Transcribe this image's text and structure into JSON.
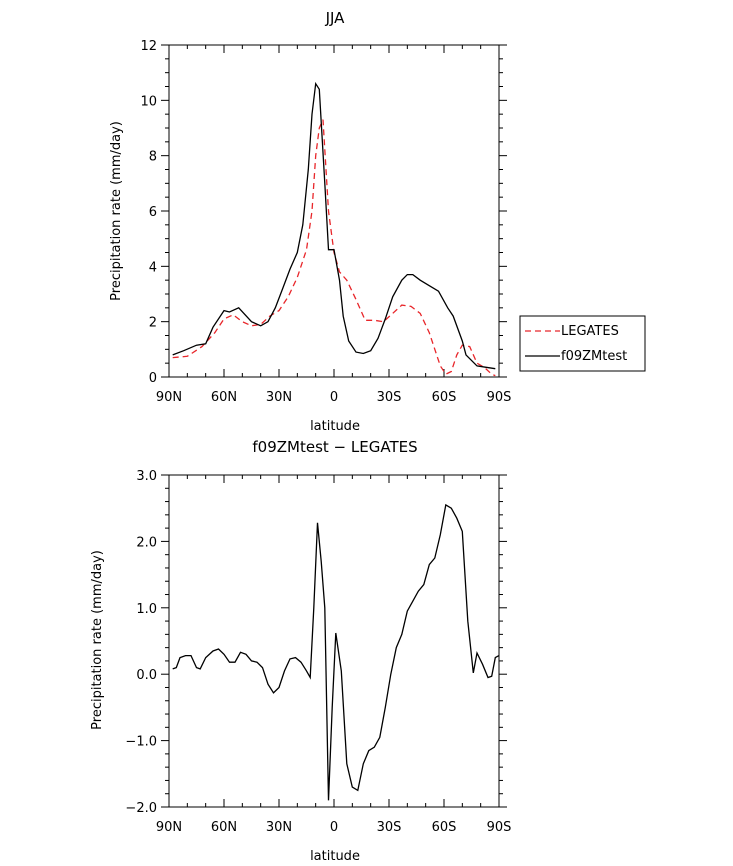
{
  "chart_data": [
    {
      "type": "line",
      "title": "JJA",
      "xlabel": "latitude",
      "ylabel": "Precipitation rate (mm/day)",
      "xlim": [
        90,
        -90
      ],
      "ylim": [
        0,
        12
      ],
      "xticks": [
        90,
        60,
        30,
        0,
        -30,
        -60,
        -90
      ],
      "xtick_labels": [
        "90N",
        "60N",
        "30N",
        "0",
        "30S",
        "60S",
        "90S"
      ],
      "yticks": [
        0,
        2,
        4,
        6,
        8,
        10,
        12
      ],
      "ytick_labels": [
        "0",
        "2",
        "4",
        "6",
        "8",
        "10",
        "12"
      ],
      "grid": false,
      "legend_position": "right",
      "series": [
        {
          "name": "LEGATES",
          "color": "#e8262a",
          "style": "dashed",
          "points": [
            [
              88,
              0.7
            ],
            [
              80,
              0.75
            ],
            [
              72,
              1.1
            ],
            [
              65,
              1.6
            ],
            [
              60,
              2.1
            ],
            [
              55,
              2.25
            ],
            [
              50,
              2.0
            ],
            [
              45,
              1.85
            ],
            [
              40,
              1.9
            ],
            [
              35,
              2.2
            ],
            [
              30,
              2.4
            ],
            [
              25,
              2.9
            ],
            [
              20,
              3.6
            ],
            [
              15,
              4.6
            ],
            [
              12,
              6.0
            ],
            [
              10,
              8.0
            ],
            [
              8,
              9.0
            ],
            [
              6,
              9.3
            ],
            [
              3,
              6.0
            ],
            [
              0,
              4.5
            ],
            [
              -3,
              3.8
            ],
            [
              -7,
              3.5
            ],
            [
              -12,
              2.8
            ],
            [
              -17,
              2.05
            ],
            [
              -22,
              2.05
            ],
            [
              -27,
              2.0
            ],
            [
              -32,
              2.3
            ],
            [
              -37,
              2.6
            ],
            [
              -42,
              2.55
            ],
            [
              -47,
              2.3
            ],
            [
              -52,
              1.6
            ],
            [
              -55,
              1.0
            ],
            [
              -58,
              0.4
            ],
            [
              -61,
              0.1
            ],
            [
              -64,
              0.2
            ],
            [
              -67,
              0.8
            ],
            [
              -70,
              1.15
            ],
            [
              -74,
              1.1
            ],
            [
              -78,
              0.5
            ],
            [
              -82,
              0.35
            ],
            [
              -86,
              0.1
            ],
            [
              -88,
              0.05
            ]
          ]
        },
        {
          "name": "f09ZMtest",
          "color": "#000000",
          "style": "solid",
          "points": [
            [
              88,
              0.8
            ],
            [
              82,
              0.95
            ],
            [
              75,
              1.15
            ],
            [
              70,
              1.2
            ],
            [
              66,
              1.8
            ],
            [
              60,
              2.4
            ],
            [
              57,
              2.35
            ],
            [
              52,
              2.5
            ],
            [
              45,
              2.0
            ],
            [
              40,
              1.85
            ],
            [
              36,
              2.0
            ],
            [
              32,
              2.5
            ],
            [
              28,
              3.2
            ],
            [
              24,
              3.9
            ],
            [
              20,
              4.5
            ],
            [
              17,
              5.5
            ],
            [
              14,
              7.5
            ],
            [
              12,
              9.5
            ],
            [
              10,
              10.6
            ],
            [
              8,
              10.4
            ],
            [
              5,
              7.0
            ],
            [
              3,
              4.6
            ],
            [
              0,
              4.6
            ],
            [
              -3,
              3.5
            ],
            [
              -5,
              2.2
            ],
            [
              -8,
              1.3
            ],
            [
              -12,
              0.9
            ],
            [
              -16,
              0.85
            ],
            [
              -20,
              0.95
            ],
            [
              -24,
              1.4
            ],
            [
              -28,
              2.1
            ],
            [
              -32,
              2.9
            ],
            [
              -37,
              3.5
            ],
            [
              -40,
              3.7
            ],
            [
              -43,
              3.7
            ],
            [
              -47,
              3.5
            ],
            [
              -52,
              3.3
            ],
            [
              -57,
              3.1
            ],
            [
              -62,
              2.5
            ],
            [
              -65,
              2.2
            ],
            [
              -70,
              1.3
            ],
            [
              -72,
              0.8
            ],
            [
              -78,
              0.4
            ],
            [
              -83,
              0.35
            ],
            [
              -88,
              0.3
            ]
          ]
        }
      ]
    },
    {
      "type": "line",
      "title": "f09ZMtest − LEGATES",
      "xlabel": "latitude",
      "ylabel": "Precipitation rate (mm/day)",
      "xlim": [
        90,
        -90
      ],
      "ylim": [
        -2.0,
        3.0
      ],
      "xticks": [
        90,
        60,
        30,
        0,
        -30,
        -60,
        -90
      ],
      "xtick_labels": [
        "90N",
        "60N",
        "30N",
        "0",
        "30S",
        "60S",
        "90S"
      ],
      "yticks": [
        -2.0,
        -1.0,
        0.0,
        1.0,
        2.0,
        3.0
      ],
      "ytick_labels": [
        "−2.0",
        "−1.0",
        "0.0",
        "1.0",
        "2.0",
        "3.0"
      ],
      "grid": false,
      "series": [
        {
          "color": "#000000",
          "style": "solid",
          "points": [
            [
              88,
              0.08
            ],
            [
              86,
              0.1
            ],
            [
              84,
              0.25
            ],
            [
              81,
              0.28
            ],
            [
              78,
              0.28
            ],
            [
              75,
              0.1
            ],
            [
              73,
              0.08
            ],
            [
              70,
              0.25
            ],
            [
              66,
              0.35
            ],
            [
              63,
              0.38
            ],
            [
              60,
              0.3
            ],
            [
              57,
              0.18
            ],
            [
              54,
              0.18
            ],
            [
              51,
              0.33
            ],
            [
              48,
              0.3
            ],
            [
              45,
              0.2
            ],
            [
              42,
              0.18
            ],
            [
              39,
              0.1
            ],
            [
              36,
              -0.15
            ],
            [
              33,
              -0.28
            ],
            [
              30,
              -0.2
            ],
            [
              27,
              0.05
            ],
            [
              24,
              0.23
            ],
            [
              21,
              0.25
            ],
            [
              18,
              0.18
            ],
            [
              15,
              0.05
            ],
            [
              13,
              -0.05
            ],
            [
              11,
              1.0
            ],
            [
              9,
              2.28
            ],
            [
              7,
              1.7
            ],
            [
              5,
              1.0
            ],
            [
              3,
              -1.9
            ],
            [
              1,
              -0.5
            ],
            [
              -1,
              0.62
            ],
            [
              -4,
              0.05
            ],
            [
              -7,
              -1.35
            ],
            [
              -10,
              -1.7
            ],
            [
              -13,
              -1.75
            ],
            [
              -16,
              -1.35
            ],
            [
              -19,
              -1.15
            ],
            [
              -22,
              -1.1
            ],
            [
              -25,
              -0.95
            ],
            [
              -28,
              -0.5
            ],
            [
              -31,
              0.0
            ],
            [
              -34,
              0.4
            ],
            [
              -37,
              0.6
            ],
            [
              -40,
              0.95
            ],
            [
              -43,
              1.1
            ],
            [
              -46,
              1.25
            ],
            [
              -49,
              1.35
            ],
            [
              -52,
              1.65
            ],
            [
              -55,
              1.75
            ],
            [
              -58,
              2.1
            ],
            [
              -61,
              2.55
            ],
            [
              -64,
              2.5
            ],
            [
              -67,
              2.35
            ],
            [
              -70,
              2.15
            ],
            [
              -73,
              0.8
            ],
            [
              -76,
              0.02
            ],
            [
              -78,
              0.32
            ],
            [
              -81,
              0.15
            ],
            [
              -84,
              -0.05
            ],
            [
              -86,
              -0.03
            ],
            [
              -88,
              0.25
            ],
            [
              -90,
              0.28
            ]
          ]
        }
      ]
    }
  ]
}
